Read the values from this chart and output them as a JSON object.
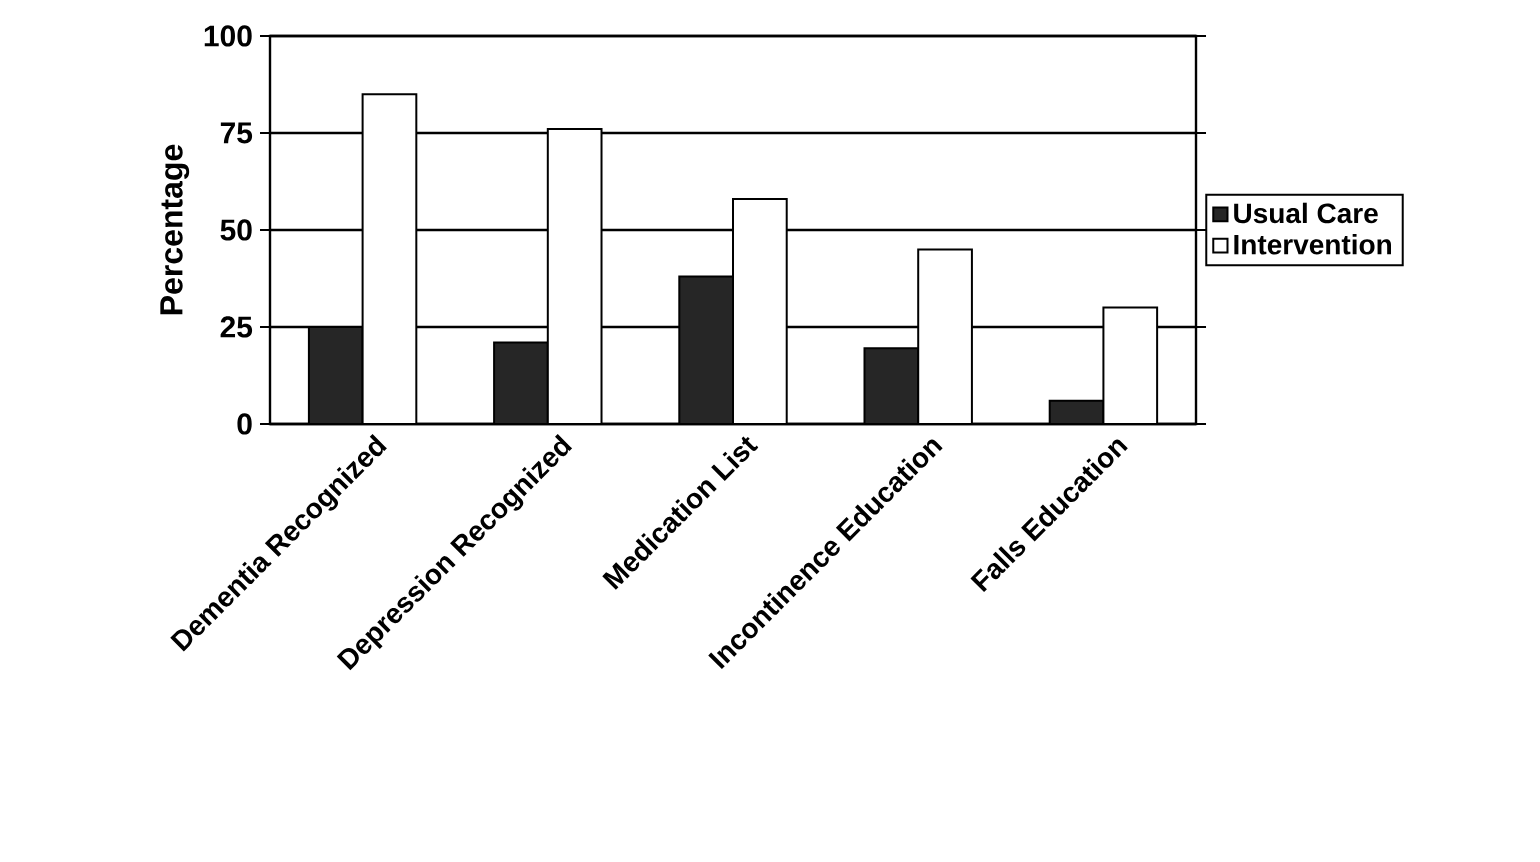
{
  "chart_data": {
    "type": "bar",
    "ylabel": "Percentage",
    "categories": [
      "Dementia Recognized",
      "Depression Recognized",
      "Medication List",
      "Incontinence Education",
      "Falls Education"
    ],
    "series": [
      {
        "name": "Usual Care",
        "color": "#262626",
        "values": [
          25,
          21,
          38,
          19.5,
          6
        ]
      },
      {
        "name": "Intervention",
        "color": "#ffffff",
        "values": [
          85,
          76,
          58,
          45,
          30
        ]
      }
    ],
    "ylim": [
      0,
      100
    ],
    "yticks": [
      0,
      25,
      50,
      75,
      100
    ],
    "grid": "y",
    "legend": "right"
  }
}
